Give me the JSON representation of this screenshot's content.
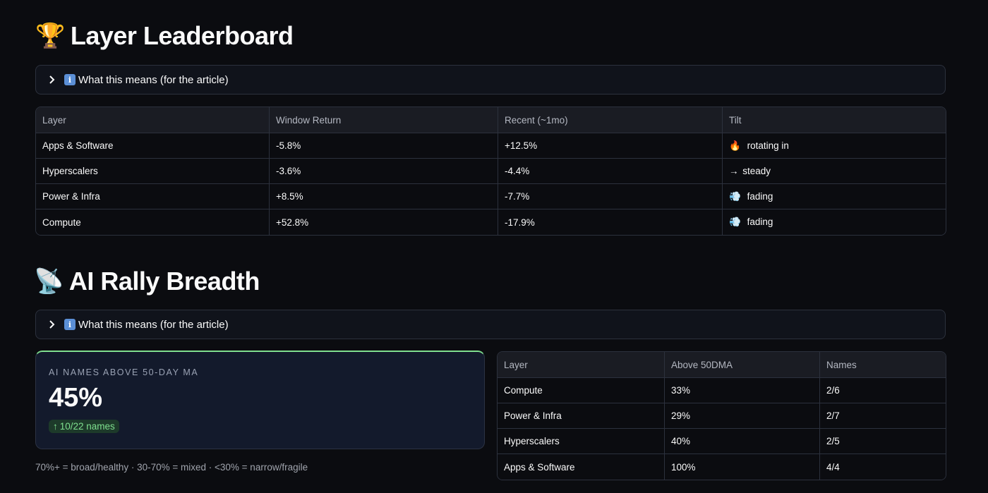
{
  "leaderboard": {
    "title_emoji": "🏆",
    "title": "Layer Leaderboard",
    "expander_label": "What this means (for the article)",
    "columns": [
      "Layer",
      "Window Return",
      "Recent (~1mo)",
      "Tilt"
    ],
    "rows": [
      {
        "layer": "Apps & Software",
        "window_return": "-5.8%",
        "recent": "+12.5%",
        "tilt_icon": "🔥",
        "tilt": "rotating in"
      },
      {
        "layer": "Hyperscalers",
        "window_return": "-3.6%",
        "recent": "-4.4%",
        "tilt_icon": "→",
        "tilt": "steady"
      },
      {
        "layer": "Power & Infra",
        "window_return": "+8.5%",
        "recent": "-7.7%",
        "tilt_icon": "💨",
        "tilt": "fading"
      },
      {
        "layer": "Compute",
        "window_return": "+52.8%",
        "recent": "-17.9%",
        "tilt_icon": "💨",
        "tilt": "fading"
      }
    ]
  },
  "breadth": {
    "title_emoji": "📡",
    "title": "AI Rally Breadth",
    "expander_label": "What this means (for the article)",
    "metric": {
      "label": "AI NAMES ABOVE 50-DAY MA",
      "value": "45%",
      "delta_arrow": "↑",
      "delta": "10/22 names"
    },
    "caption": "70%+ = broad/healthy · 30-70% = mixed · <30% = narrow/fragile",
    "columns": [
      "Layer",
      "Above 50DMA",
      "Names"
    ],
    "rows": [
      {
        "layer": "Compute",
        "above": "33%",
        "names": "2/6"
      },
      {
        "layer": "Power & Infra",
        "above": "29%",
        "names": "2/7"
      },
      {
        "layer": "Hyperscalers",
        "above": "40%",
        "names": "2/5"
      },
      {
        "layer": "Apps & Software",
        "above": "100%",
        "names": "4/4"
      }
    ]
  },
  "colors": {
    "background": "#0b0c10",
    "metric_accent": "#7fe08f",
    "info_badge": "#5b8fd6"
  }
}
